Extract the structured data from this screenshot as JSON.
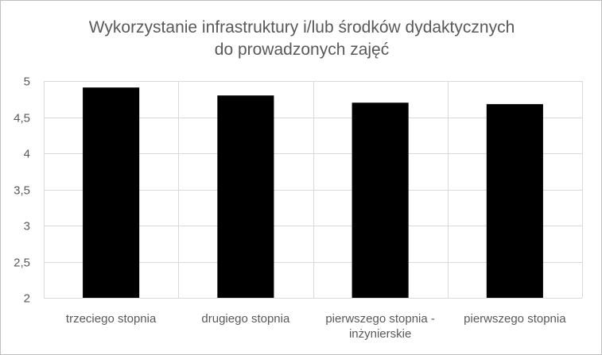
{
  "chart_data": {
    "type": "bar",
    "title": [
      "Wykorzystanie infrastruktury i/lub środków dydaktycznych",
      "do prowadzonych zajęć"
    ],
    "categories": [
      [
        "trzeciego stopnia"
      ],
      [
        "drugiego stopnia"
      ],
      [
        "pierwszego stopnia -",
        "inżynierskie"
      ],
      [
        "pierwszego stopnia"
      ]
    ],
    "values": [
      4.91,
      4.8,
      4.7,
      4.68
    ],
    "ylim": [
      2,
      5
    ],
    "yticks": [
      "2",
      "2,5",
      "3",
      "3,5",
      "4",
      "4,5",
      "5"
    ],
    "ytick_values": [
      2,
      2.5,
      3,
      3.5,
      4,
      4.5,
      5
    ],
    "grid": true,
    "bar_color": "#000000",
    "grid_color": "#d9d9d9",
    "xlabel": "",
    "ylabel": ""
  }
}
